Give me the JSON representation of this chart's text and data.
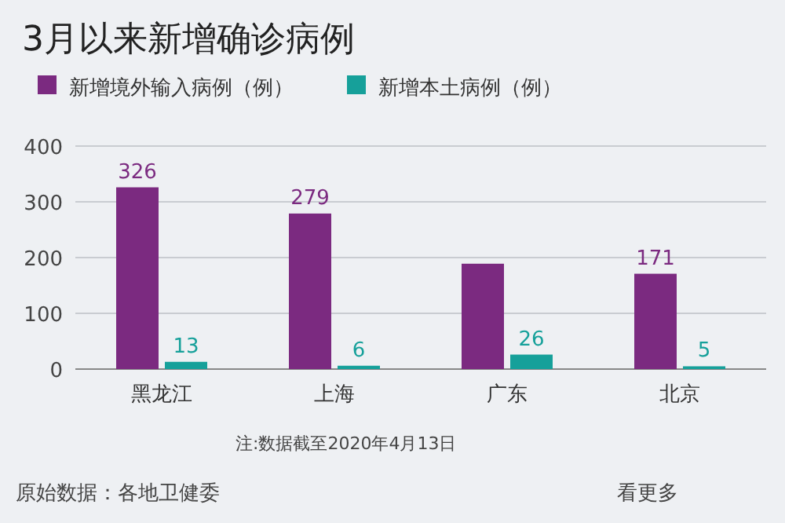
{
  "chart_data": {
    "type": "bar",
    "title": "3月以来新增确诊病例",
    "categories": [
      "黑龙江",
      "上海",
      "广东",
      "北京"
    ],
    "series": [
      {
        "name": "新增境外输入病例（例）",
        "color": "#7b2a80",
        "values": [
          326,
          279,
          189,
          171
        ],
        "value_labels": [
          "326",
          "279",
          null,
          "171"
        ]
      },
      {
        "name": "新增本土病例（例）",
        "color": "#16a09a",
        "values": [
          13,
          6,
          26,
          5
        ],
        "value_labels": [
          "13",
          "6",
          "26",
          "5"
        ]
      }
    ],
    "ylim": [
      0,
      400
    ],
    "yticks": [
      0,
      100,
      200,
      300,
      400
    ],
    "grid": "y",
    "legend": "top left",
    "annotations": [
      "注:数据截至2020年4月13日",
      "原始数据：各地卫健委",
      "看更多"
    ]
  }
}
